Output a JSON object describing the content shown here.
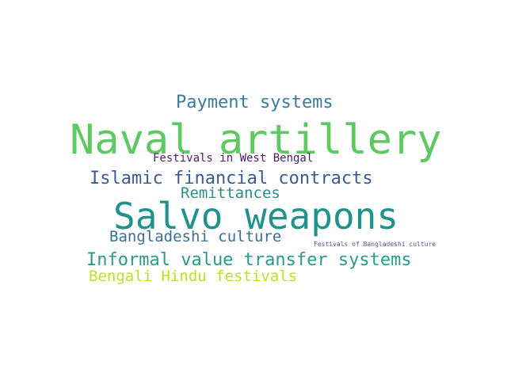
{
  "cloud": {
    "words": [
      {
        "key": "naval",
        "text": "Naval artillery",
        "color": "#5ec962"
      },
      {
        "key": "salvo",
        "text": "Salvo weapons",
        "color": "#21918c"
      },
      {
        "key": "payment",
        "text": "Payment systems",
        "color": "#3b7a9c"
      },
      {
        "key": "islamic",
        "text": "Islamic financial contracts",
        "color": "#3e5a8c"
      },
      {
        "key": "festwb",
        "text": "Festivals in West Bengal",
        "color": "#4a1a6b"
      },
      {
        "key": "remit",
        "text": "Remittances",
        "color": "#2d8a8e"
      },
      {
        "key": "bdculture",
        "text": "Bangladeshi culture",
        "color": "#3a6f95"
      },
      {
        "key": "festbd",
        "text": "Festivals of Bangladeshi culture",
        "color": "#5b4a9a"
      },
      {
        "key": "informal",
        "text": "Informal value transfer systems",
        "color": "#29998a"
      },
      {
        "key": "bengali",
        "text": "Bengali Hindu festivals",
        "color": "#bddf26"
      }
    ]
  }
}
